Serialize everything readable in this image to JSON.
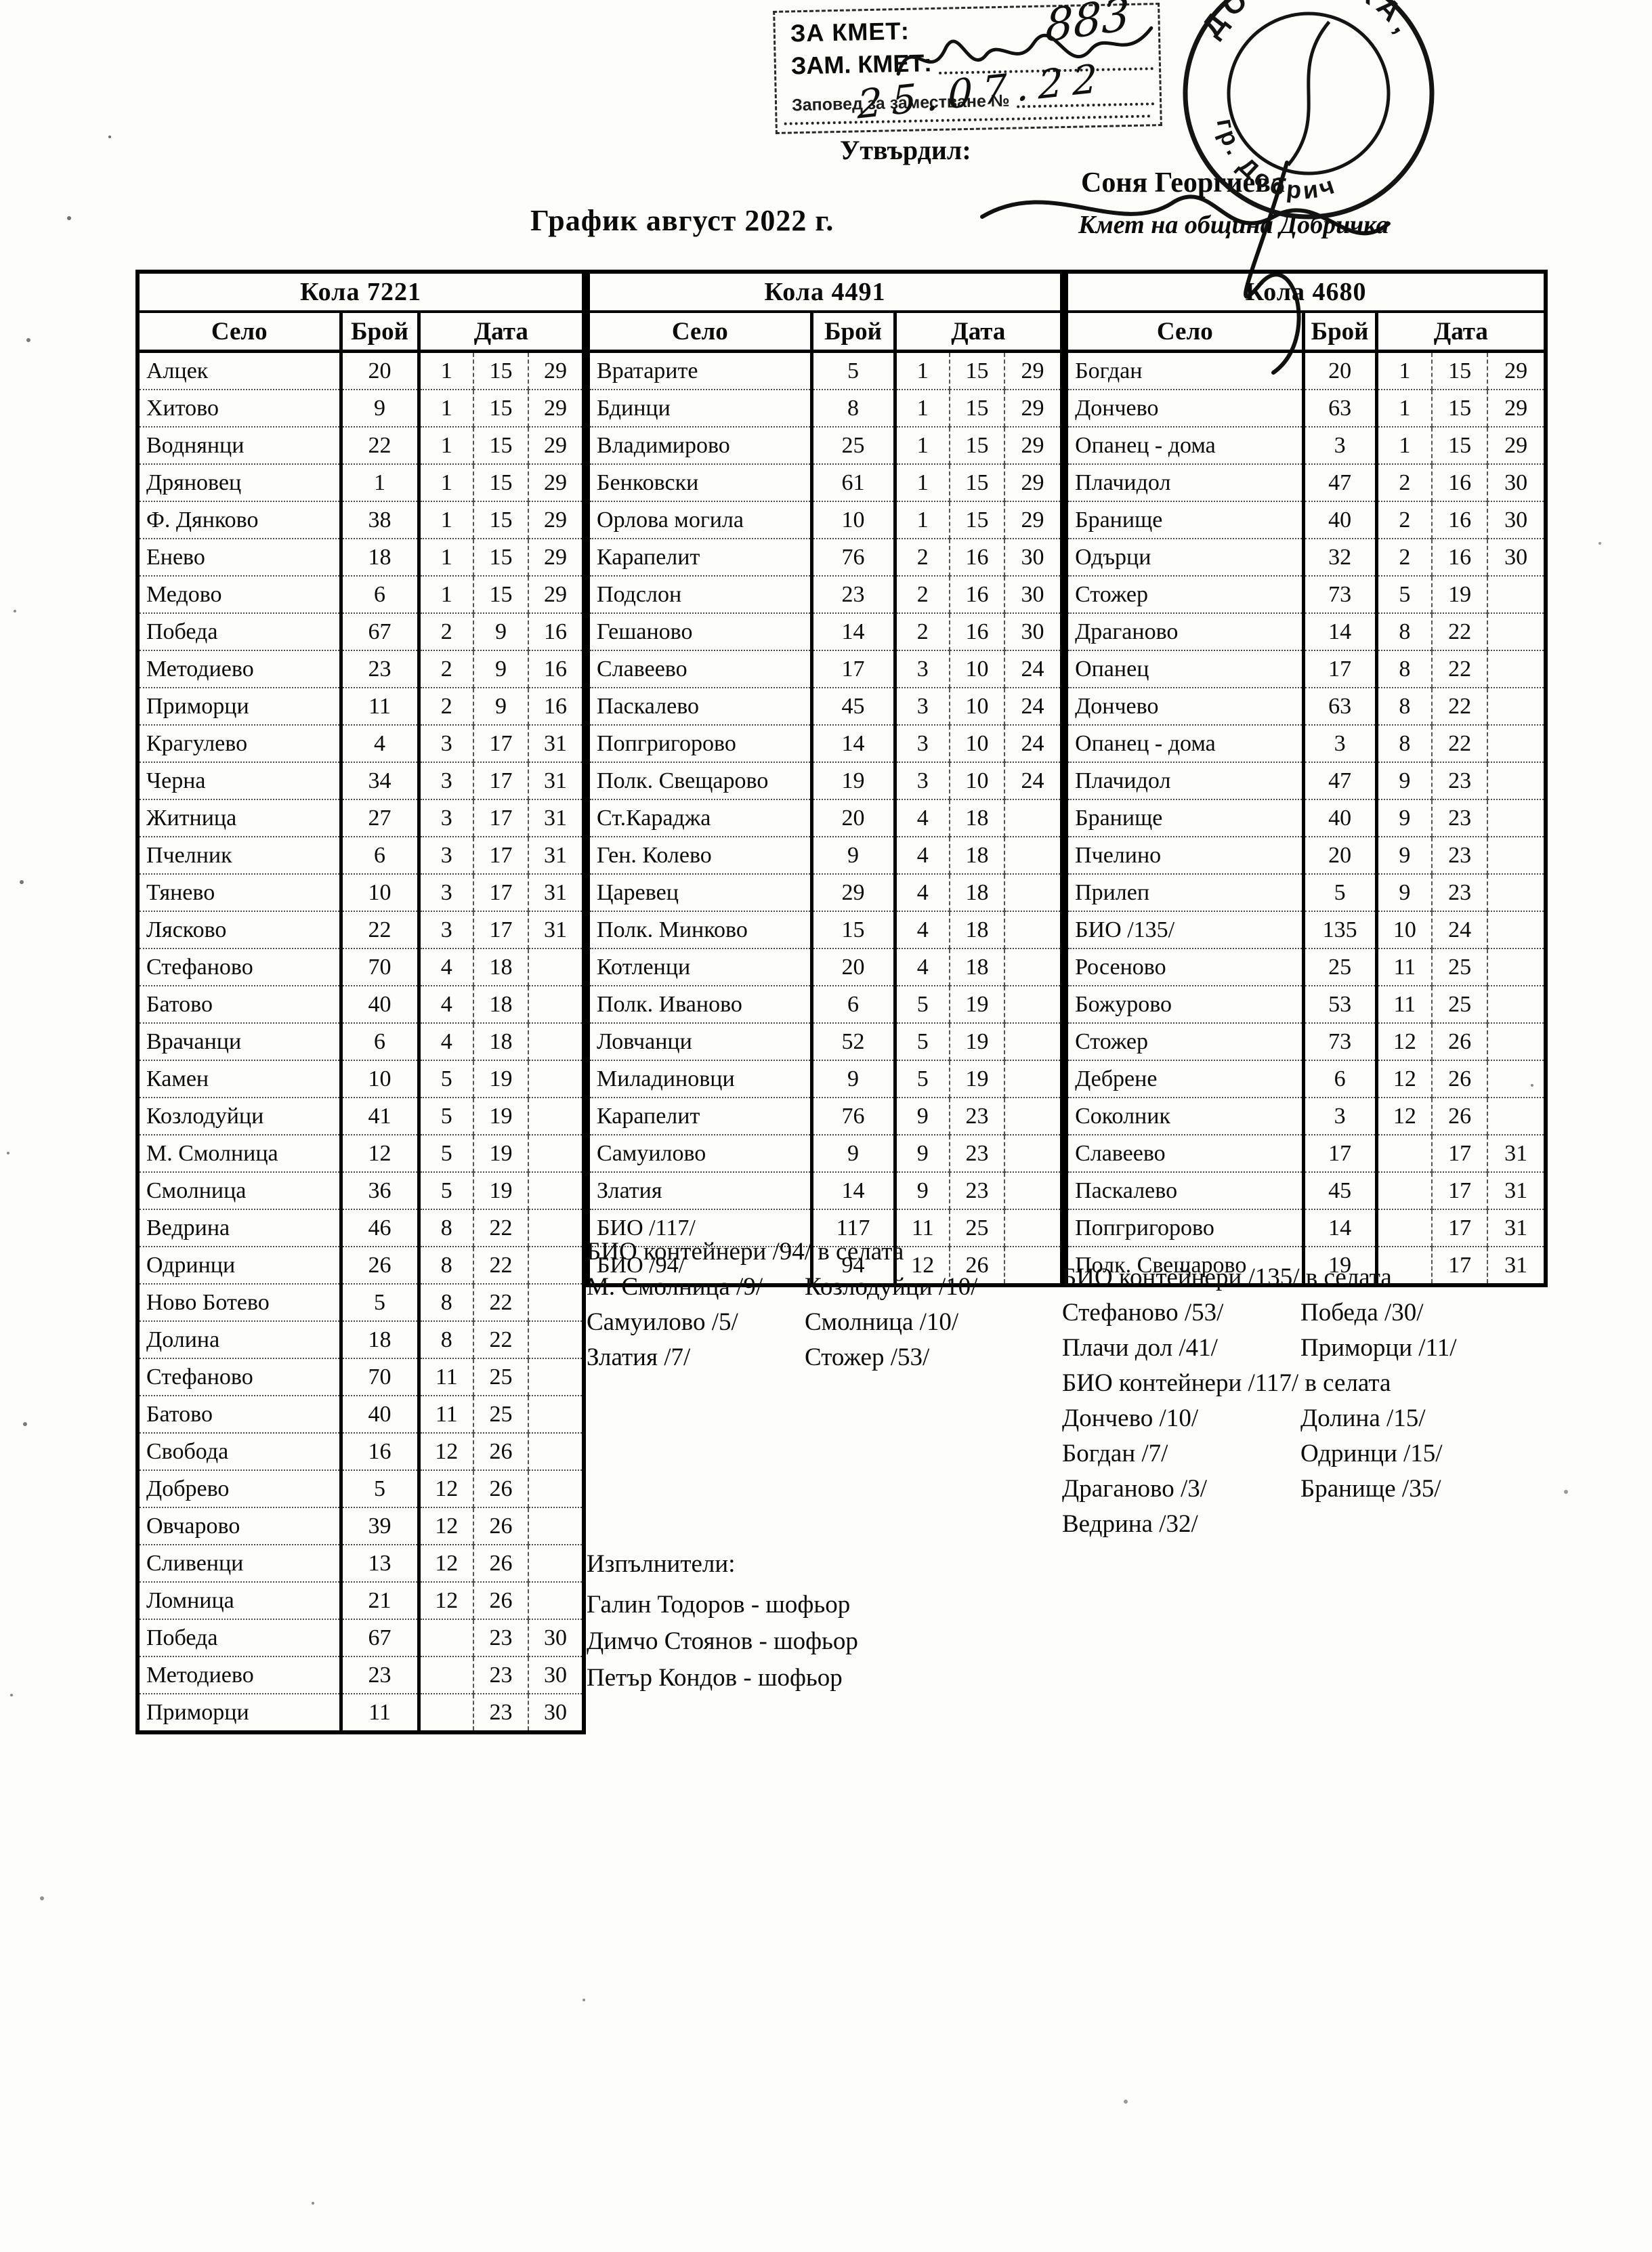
{
  "header": {
    "title": "График август 2022 г.",
    "stamp_box": {
      "line1": "ЗА КМЕТ:",
      "line2": "ЗАМ. КМЕТ:",
      "line3": "Заповед за заместване №",
      "handwritten_number": "883",
      "handwritten_date": "25.07.22"
    },
    "approved_label": "Утвърдил:",
    "approver_name": "Соня Георгиева",
    "approver_title": "Кмет  на община Добричка",
    "round_stamp": {
      "text_top": "ДОБРИЧКА",
      "text_bottom": "гр. Добрич"
    }
  },
  "tables": [
    {
      "car": "Кола 7221",
      "columns": [
        "Село",
        "Брой",
        "Дата"
      ],
      "rows": [
        {
          "village": "Алцек",
          "count": "20",
          "dates": [
            "1",
            "15",
            "29"
          ]
        },
        {
          "village": "Хитово",
          "count": "9",
          "dates": [
            "1",
            "15",
            "29"
          ]
        },
        {
          "village": "Воднянци",
          "count": "22",
          "dates": [
            "1",
            "15",
            "29"
          ]
        },
        {
          "village": "Дряновец",
          "count": "1",
          "dates": [
            "1",
            "15",
            "29"
          ]
        },
        {
          "village": "Ф. Дянково",
          "count": "38",
          "dates": [
            "1",
            "15",
            "29"
          ]
        },
        {
          "village": "Енево",
          "count": "18",
          "dates": [
            "1",
            "15",
            "29"
          ]
        },
        {
          "village": "Медово",
          "count": "6",
          "dates": [
            "1",
            "15",
            "29"
          ]
        },
        {
          "village": "Победа",
          "count": "67",
          "dates": [
            "2",
            "9",
            "16"
          ]
        },
        {
          "village": "Методиево",
          "count": "23",
          "dates": [
            "2",
            "9",
            "16"
          ]
        },
        {
          "village": "Приморци",
          "count": "11",
          "dates": [
            "2",
            "9",
            "16"
          ]
        },
        {
          "village": "Крагулево",
          "count": "4",
          "dates": [
            "3",
            "17",
            "31"
          ]
        },
        {
          "village": "Черна",
          "count": "34",
          "dates": [
            "3",
            "17",
            "31"
          ]
        },
        {
          "village": "Житница",
          "count": "27",
          "dates": [
            "3",
            "17",
            "31"
          ]
        },
        {
          "village": "Пчелник",
          "count": "6",
          "dates": [
            "3",
            "17",
            "31"
          ]
        },
        {
          "village": "Тянево",
          "count": "10",
          "dates": [
            "3",
            "17",
            "31"
          ]
        },
        {
          "village": "Лясково",
          "count": "22",
          "dates": [
            "3",
            "17",
            "31"
          ]
        },
        {
          "village": "Стефаново",
          "count": "70",
          "dates": [
            "4",
            "18",
            ""
          ]
        },
        {
          "village": "Батово",
          "count": "40",
          "dates": [
            "4",
            "18",
            ""
          ]
        },
        {
          "village": "Врачанци",
          "count": "6",
          "dates": [
            "4",
            "18",
            ""
          ]
        },
        {
          "village": "Камен",
          "count": "10",
          "dates": [
            "5",
            "19",
            ""
          ]
        },
        {
          "village": "Козлодуйци",
          "count": "41",
          "dates": [
            "5",
            "19",
            ""
          ]
        },
        {
          "village": "М. Смолница",
          "count": "12",
          "dates": [
            "5",
            "19",
            ""
          ]
        },
        {
          "village": "Смолница",
          "count": "36",
          "dates": [
            "5",
            "19",
            ""
          ]
        },
        {
          "village": "Ведрина",
          "count": "46",
          "dates": [
            "8",
            "22",
            ""
          ]
        },
        {
          "village": "Одринци",
          "count": "26",
          "dates": [
            "8",
            "22",
            ""
          ]
        },
        {
          "village": "Ново Ботево",
          "count": "5",
          "dates": [
            "8",
            "22",
            ""
          ]
        },
        {
          "village": "Долина",
          "count": "18",
          "dates": [
            "8",
            "22",
            ""
          ]
        },
        {
          "village": "Стефаново",
          "count": "70",
          "dates": [
            "11",
            "25",
            ""
          ]
        },
        {
          "village": "Батово",
          "count": "40",
          "dates": [
            "11",
            "25",
            ""
          ]
        },
        {
          "village": "Свобода",
          "count": "16",
          "dates": [
            "12",
            "26",
            ""
          ]
        },
        {
          "village": "Добрево",
          "count": "5",
          "dates": [
            "12",
            "26",
            ""
          ]
        },
        {
          "village": "Овчарово",
          "count": "39",
          "dates": [
            "12",
            "26",
            ""
          ]
        },
        {
          "village": "Сливенци",
          "count": "13",
          "dates": [
            "12",
            "26",
            ""
          ]
        },
        {
          "village": "Ломница",
          "count": "21",
          "dates": [
            "12",
            "26",
            ""
          ]
        },
        {
          "village": "Победа",
          "count": "67",
          "dates": [
            "",
            "23",
            "30"
          ]
        },
        {
          "village": "Методиево",
          "count": "23",
          "dates": [
            "",
            "23",
            "30"
          ]
        },
        {
          "village": "Приморци",
          "count": "11",
          "dates": [
            "",
            "23",
            "30"
          ]
        }
      ]
    },
    {
      "car": "Кола 4491",
      "columns": [
        "Село",
        "Брой",
        "Дата"
      ],
      "rows": [
        {
          "village": "Вратарите",
          "count": "5",
          "dates": [
            "1",
            "15",
            "29"
          ]
        },
        {
          "village": "Бдинци",
          "count": "8",
          "dates": [
            "1",
            "15",
            "29"
          ]
        },
        {
          "village": "Владимирово",
          "count": "25",
          "dates": [
            "1",
            "15",
            "29"
          ]
        },
        {
          "village": "Бенковски",
          "count": "61",
          "dates": [
            "1",
            "15",
            "29"
          ]
        },
        {
          "village": "Орлова могила",
          "count": "10",
          "dates": [
            "1",
            "15",
            "29"
          ]
        },
        {
          "village": "Карапелит",
          "count": "76",
          "dates": [
            "2",
            "16",
            "30"
          ]
        },
        {
          "village": "Подслон",
          "count": "23",
          "dates": [
            "2",
            "16",
            "30"
          ]
        },
        {
          "village": "Гешаново",
          "count": "14",
          "dates": [
            "2",
            "16",
            "30"
          ]
        },
        {
          "village": "Славеево",
          "count": "17",
          "dates": [
            "3",
            "10",
            "24"
          ]
        },
        {
          "village": "Паскалево",
          "count": "45",
          "dates": [
            "3",
            "10",
            "24"
          ]
        },
        {
          "village": "Попгригорово",
          "count": "14",
          "dates": [
            "3",
            "10",
            "24"
          ]
        },
        {
          "village": "Полк. Свещарово",
          "count": "19",
          "dates": [
            "3",
            "10",
            "24"
          ]
        },
        {
          "village": "Ст.Караджа",
          "count": "20",
          "dates": [
            "4",
            "18",
            ""
          ]
        },
        {
          "village": "Ген. Колево",
          "count": "9",
          "dates": [
            "4",
            "18",
            ""
          ]
        },
        {
          "village": "Царевец",
          "count": "29",
          "dates": [
            "4",
            "18",
            ""
          ]
        },
        {
          "village": "Полк. Минково",
          "count": "15",
          "dates": [
            "4",
            "18",
            ""
          ]
        },
        {
          "village": "Котленци",
          "count": "20",
          "dates": [
            "4",
            "18",
            ""
          ]
        },
        {
          "village": "Полк. Иваново",
          "count": "6",
          "dates": [
            "5",
            "19",
            ""
          ]
        },
        {
          "village": "Ловчанци",
          "count": "52",
          "dates": [
            "5",
            "19",
            ""
          ]
        },
        {
          "village": "Миладиновци",
          "count": "9",
          "dates": [
            "5",
            "19",
            ""
          ]
        },
        {
          "village": "Карапелит",
          "count": "76",
          "dates": [
            "9",
            "23",
            ""
          ]
        },
        {
          "village": "Самуилово",
          "count": "9",
          "dates": [
            "9",
            "23",
            ""
          ]
        },
        {
          "village": "Златия",
          "count": "14",
          "dates": [
            "9",
            "23",
            ""
          ]
        },
        {
          "village": "БИО /117/",
          "count": "117",
          "dates": [
            "11",
            "25",
            ""
          ]
        },
        {
          "village": "БИО /94/",
          "count": "94",
          "dates": [
            "12",
            "26",
            ""
          ]
        }
      ]
    },
    {
      "car": "Кола 4680",
      "columns": [
        "Село",
        "Брой",
        "Дата"
      ],
      "rows": [
        {
          "village": "Богдан",
          "count": "20",
          "dates": [
            "1",
            "15",
            "29"
          ]
        },
        {
          "village": "Дончево",
          "count": "63",
          "dates": [
            "1",
            "15",
            "29"
          ]
        },
        {
          "village": "Опанец - дома",
          "count": "3",
          "dates": [
            "1",
            "15",
            "29"
          ]
        },
        {
          "village": "Плачидол",
          "count": "47",
          "dates": [
            "2",
            "16",
            "30"
          ]
        },
        {
          "village": "Бранище",
          "count": "40",
          "dates": [
            "2",
            "16",
            "30"
          ]
        },
        {
          "village": "Одърци",
          "count": "32",
          "dates": [
            "2",
            "16",
            "30"
          ]
        },
        {
          "village": "Стожер",
          "count": "73",
          "dates": [
            "5",
            "19",
            ""
          ]
        },
        {
          "village": "Драганово",
          "count": "14",
          "dates": [
            "8",
            "22",
            ""
          ]
        },
        {
          "village": "Опанец",
          "count": "17",
          "dates": [
            "8",
            "22",
            ""
          ]
        },
        {
          "village": "Дончево",
          "count": "63",
          "dates": [
            "8",
            "22",
            ""
          ]
        },
        {
          "village": "Опанец - дома",
          "count": "3",
          "dates": [
            "8",
            "22",
            ""
          ]
        },
        {
          "village": "Плачидол",
          "count": "47",
          "dates": [
            "9",
            "23",
            ""
          ]
        },
        {
          "village": "Бранище",
          "count": "40",
          "dates": [
            "9",
            "23",
            ""
          ]
        },
        {
          "village": "Пчелино",
          "count": "20",
          "dates": [
            "9",
            "23",
            ""
          ]
        },
        {
          "village": "Прилеп",
          "count": "5",
          "dates": [
            "9",
            "23",
            ""
          ]
        },
        {
          "village": "БИО /135/",
          "count": "135",
          "dates": [
            "10",
            "24",
            ""
          ]
        },
        {
          "village": "Росеново",
          "count": "25",
          "dates": [
            "11",
            "25",
            ""
          ]
        },
        {
          "village": "Божурово",
          "count": "53",
          "dates": [
            "11",
            "25",
            ""
          ]
        },
        {
          "village": "Стожер",
          "count": "73",
          "dates": [
            "12",
            "26",
            ""
          ]
        },
        {
          "village": "Дебрене",
          "count": "6",
          "dates": [
            "12",
            "26",
            ""
          ]
        },
        {
          "village": "Соколник",
          "count": "3",
          "dates": [
            "12",
            "26",
            ""
          ]
        },
        {
          "village": "Славеево",
          "count": "17",
          "dates": [
            "",
            "17",
            "31"
          ]
        },
        {
          "village": "Паскалево",
          "count": "45",
          "dates": [
            "",
            "17",
            "31"
          ]
        },
        {
          "village": "Попгригорово",
          "count": "14",
          "dates": [
            "",
            "17",
            "31"
          ]
        },
        {
          "village": "Полк. Свещарово",
          "count": "19",
          "dates": [
            "",
            "17",
            "31"
          ]
        }
      ]
    }
  ],
  "notes_kola4491": {
    "title": "БИО контейнери /94/ в селата",
    "items": [
      [
        "М. Смолница /9/",
        "Козлодуйци /10/"
      ],
      [
        "Самуилово /5/",
        "Смолница /10/"
      ],
      [
        "Златия /7/",
        "Стожер /53/"
      ]
    ]
  },
  "notes_kola4680": {
    "section135": {
      "title": "БИО контейнери /135/ в селата",
      "items": [
        [
          "Стефаново /53/",
          "Победа /30/"
        ],
        [
          "Плачи дол /41/",
          "Приморци /11/"
        ]
      ]
    },
    "section117": {
      "title": "БИО контейнери /117/ в селата",
      "items": [
        [
          "Дончево /10/",
          "Долина /15/"
        ],
        [
          "Богдан /7/",
          "Одринци /15/"
        ],
        [
          "Драганово /3/",
          "Бранище /35/"
        ],
        [
          "Ведрина /32/",
          ""
        ]
      ]
    }
  },
  "executors": {
    "label": "Изпълнители:",
    "drivers": [
      "Галин Тодоров - шофьор",
      "Димчо Стоянов - шофьор",
      "Петър Кондов - шофьор"
    ]
  }
}
